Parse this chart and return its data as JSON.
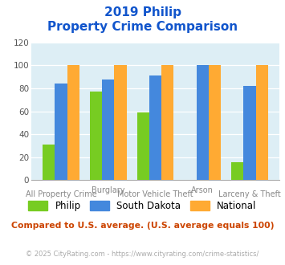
{
  "title_line1": "2019 Philip",
  "title_line2": "Property Crime Comparison",
  "philip": [
    31,
    77,
    59,
    0,
    16
  ],
  "south_dakota": [
    84,
    88,
    91,
    100,
    82
  ],
  "national": [
    100,
    100,
    100,
    100,
    100
  ],
  "philip_color": "#77cc22",
  "sd_color": "#4488dd",
  "national_color": "#ffaa33",
  "ylim": [
    0,
    120
  ],
  "yticks": [
    0,
    20,
    40,
    60,
    80,
    100,
    120
  ],
  "plot_bg": "#ddeef5",
  "legend_labels": [
    "Philip",
    "South Dakota",
    "National"
  ],
  "note": "Compared to U.S. average. (U.S. average equals 100)",
  "footer": "© 2025 CityRating.com - https://www.cityrating.com/crime-statistics/",
  "title_color": "#1155cc",
  "note_color": "#cc4400",
  "footer_color": "#aaaaaa",
  "top_xlabels": [
    [
      1,
      "Burglary"
    ],
    [
      3,
      "Arson"
    ]
  ],
  "bot_xlabels": [
    [
      0,
      "All Property Crime"
    ],
    [
      2,
      "Motor Vehicle Theft"
    ],
    [
      4,
      "Larceny & Theft"
    ]
  ]
}
